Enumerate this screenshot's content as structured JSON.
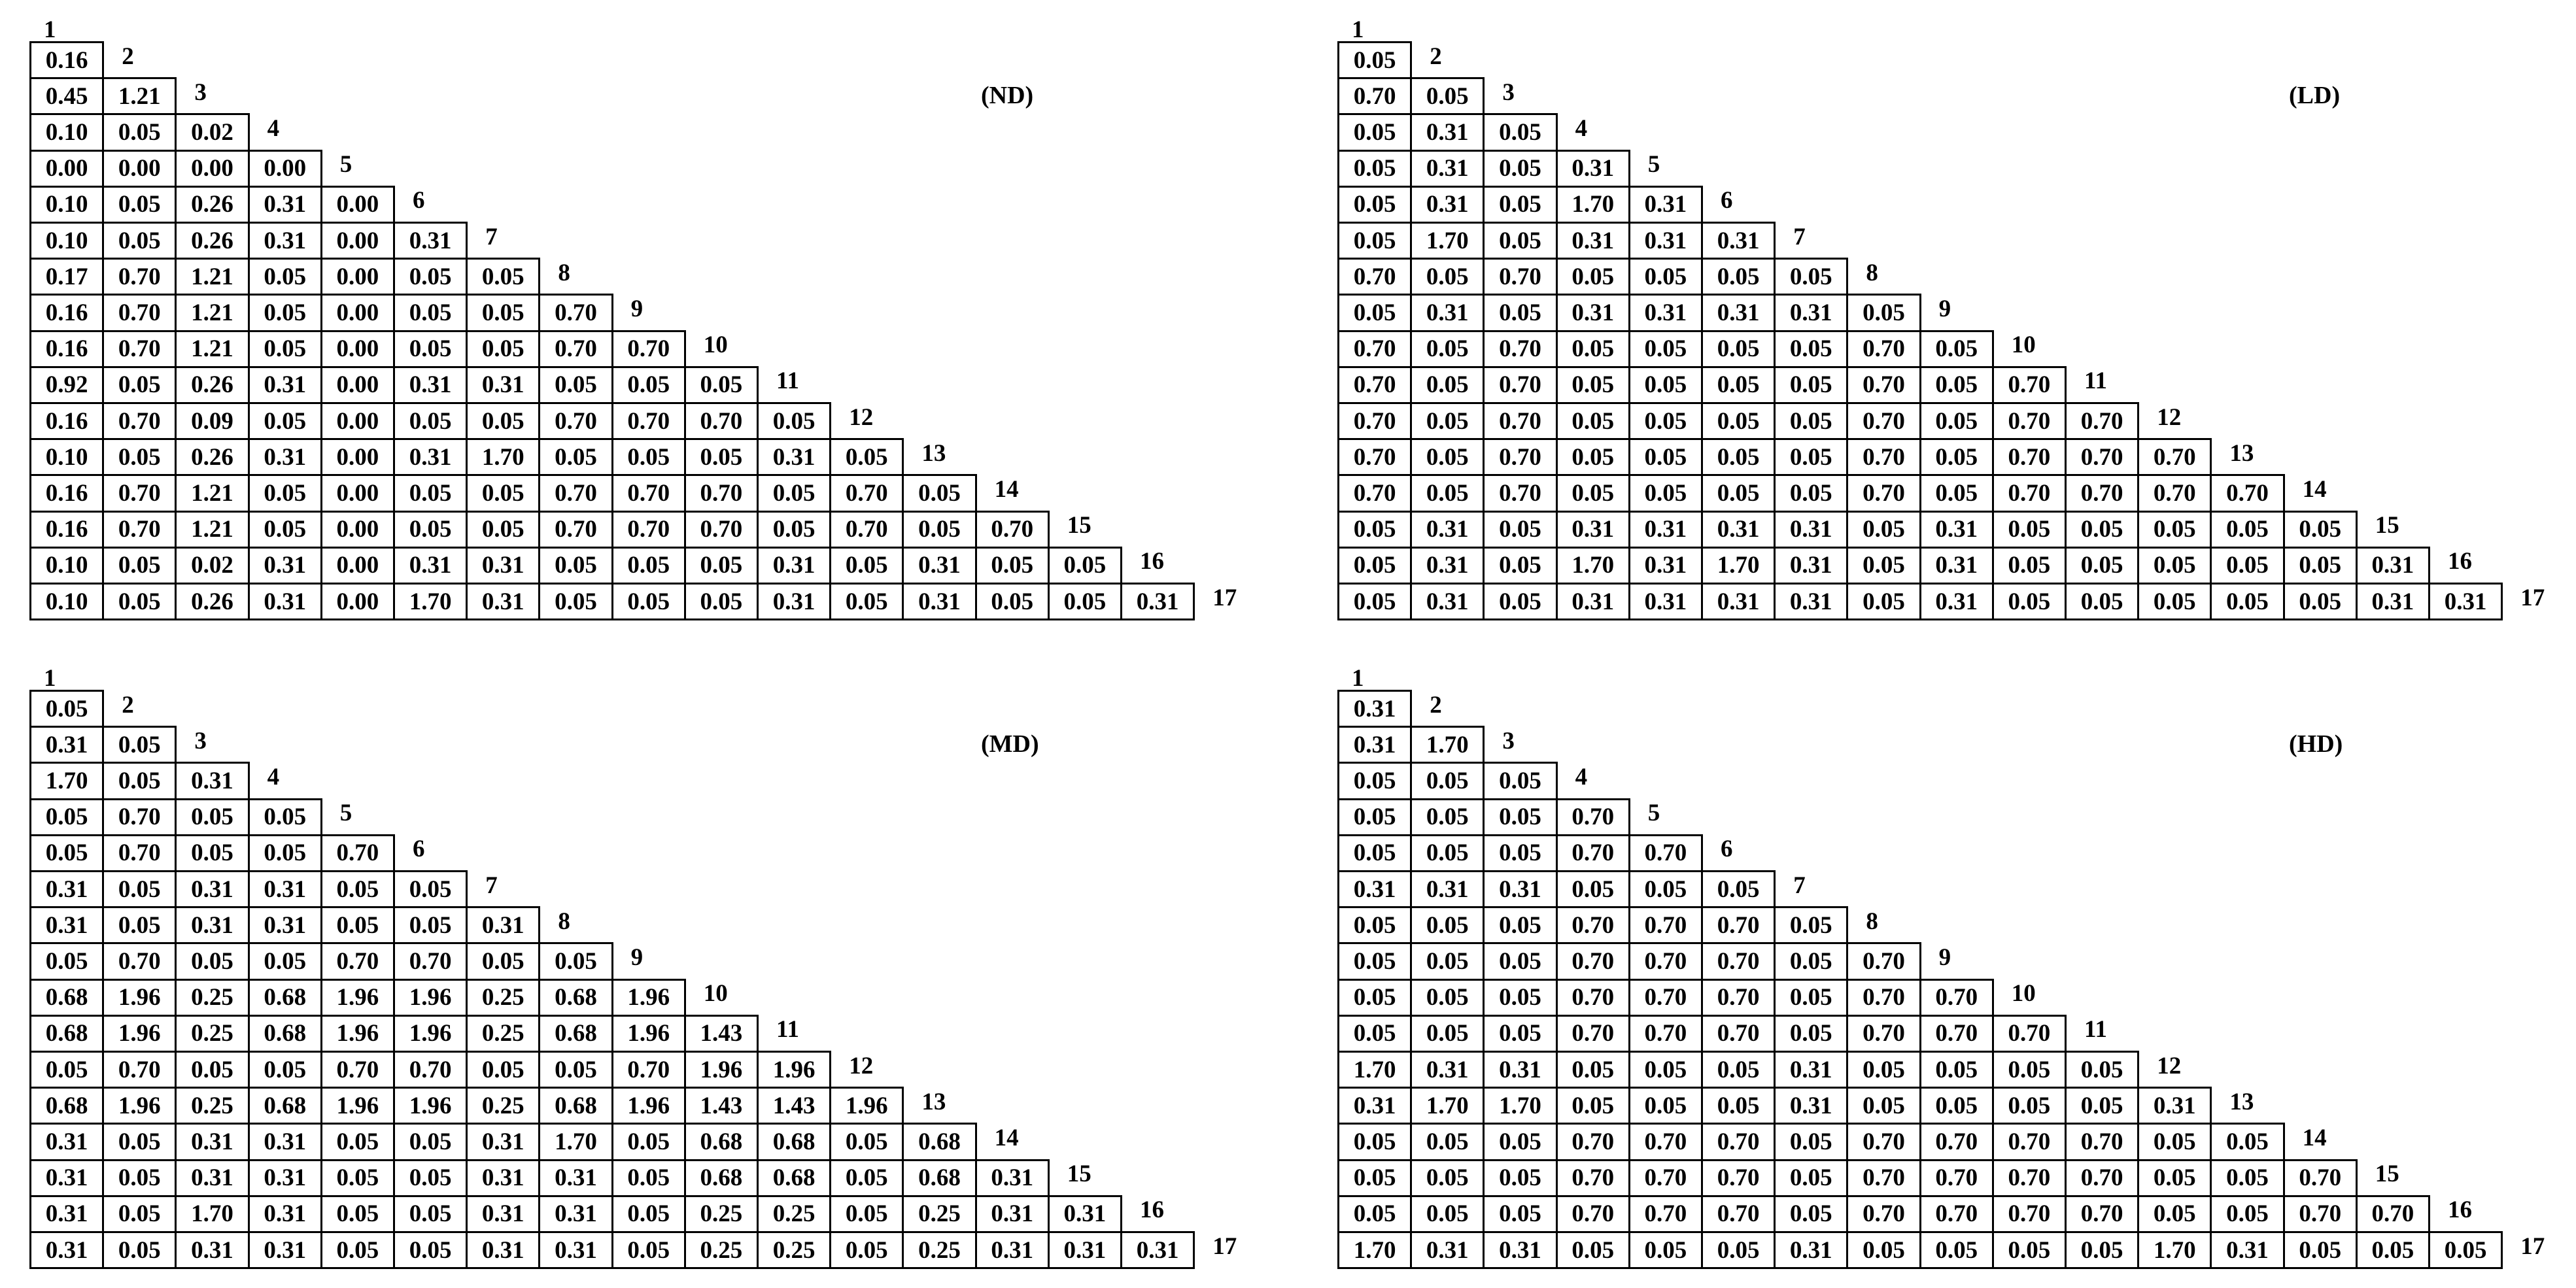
{
  "panels": [
    {
      "title": "(ND)",
      "labels": [
        "1",
        "2",
        "3",
        "4",
        "5",
        "6",
        "7",
        "8",
        "9",
        "10",
        "11",
        "12",
        "13",
        "14",
        "15",
        "16",
        "17"
      ],
      "rows": [
        [
          "0.16"
        ],
        [
          "0.45",
          "1.21"
        ],
        [
          "0.10",
          "0.05",
          "0.02"
        ],
        [
          "0.00",
          "0.00",
          "0.00",
          "0.00"
        ],
        [
          "0.10",
          "0.05",
          "0.26",
          "0.31",
          "0.00"
        ],
        [
          "0.10",
          "0.05",
          "0.26",
          "0.31",
          "0.00",
          "0.31"
        ],
        [
          "0.17",
          "0.70",
          "1.21",
          "0.05",
          "0.00",
          "0.05",
          "0.05"
        ],
        [
          "0.16",
          "0.70",
          "1.21",
          "0.05",
          "0.00",
          "0.05",
          "0.05",
          "0.70"
        ],
        [
          "0.16",
          "0.70",
          "1.21",
          "0.05",
          "0.00",
          "0.05",
          "0.05",
          "0.70",
          "0.70"
        ],
        [
          "0.92",
          "0.05",
          "0.26",
          "0.31",
          "0.00",
          "0.31",
          "0.31",
          "0.05",
          "0.05",
          "0.05"
        ],
        [
          "0.16",
          "0.70",
          "0.09",
          "0.05",
          "0.00",
          "0.05",
          "0.05",
          "0.70",
          "0.70",
          "0.70",
          "0.05"
        ],
        [
          "0.10",
          "0.05",
          "0.26",
          "0.31",
          "0.00",
          "0.31",
          "1.70",
          "0.05",
          "0.05",
          "0.05",
          "0.31",
          "0.05"
        ],
        [
          "0.16",
          "0.70",
          "1.21",
          "0.05",
          "0.00",
          "0.05",
          "0.05",
          "0.70",
          "0.70",
          "0.70",
          "0.05",
          "0.70",
          "0.05"
        ],
        [
          "0.16",
          "0.70",
          "1.21",
          "0.05",
          "0.00",
          "0.05",
          "0.05",
          "0.70",
          "0.70",
          "0.70",
          "0.05",
          "0.70",
          "0.05",
          "0.70"
        ],
        [
          "0.10",
          "0.05",
          "0.02",
          "0.31",
          "0.00",
          "0.31",
          "0.31",
          "0.05",
          "0.05",
          "0.05",
          "0.31",
          "0.05",
          "0.31",
          "0.05",
          "0.05"
        ],
        [
          "0.10",
          "0.05",
          "0.26",
          "0.31",
          "0.00",
          "1.70",
          "0.31",
          "0.05",
          "0.05",
          "0.05",
          "0.31",
          "0.05",
          "0.31",
          "0.05",
          "0.05",
          "0.31"
        ]
      ]
    },
    {
      "title": "(LD)",
      "labels": [
        "1",
        "2",
        "3",
        "4",
        "5",
        "6",
        "7",
        "8",
        "9",
        "10",
        "11",
        "12",
        "13",
        "14",
        "15",
        "16",
        "17"
      ],
      "rows": [
        [
          "0.05"
        ],
        [
          "0.70",
          "0.05"
        ],
        [
          "0.05",
          "0.31",
          "0.05"
        ],
        [
          "0.05",
          "0.31",
          "0.05",
          "0.31"
        ],
        [
          "0.05",
          "0.31",
          "0.05",
          "1.70",
          "0.31"
        ],
        [
          "0.05",
          "1.70",
          "0.05",
          "0.31",
          "0.31",
          "0.31"
        ],
        [
          "0.70",
          "0.05",
          "0.70",
          "0.05",
          "0.05",
          "0.05",
          "0.05"
        ],
        [
          "0.05",
          "0.31",
          "0.05",
          "0.31",
          "0.31",
          "0.31",
          "0.31",
          "0.05"
        ],
        [
          "0.70",
          "0.05",
          "0.70",
          "0.05",
          "0.05",
          "0.05",
          "0.05",
          "0.70",
          "0.05"
        ],
        [
          "0.70",
          "0.05",
          "0.70",
          "0.05",
          "0.05",
          "0.05",
          "0.05",
          "0.70",
          "0.05",
          "0.70"
        ],
        [
          "0.70",
          "0.05",
          "0.70",
          "0.05",
          "0.05",
          "0.05",
          "0.05",
          "0.70",
          "0.05",
          "0.70",
          "0.70"
        ],
        [
          "0.70",
          "0.05",
          "0.70",
          "0.05",
          "0.05",
          "0.05",
          "0.05",
          "0.70",
          "0.05",
          "0.70",
          "0.70",
          "0.70"
        ],
        [
          "0.70",
          "0.05",
          "0.70",
          "0.05",
          "0.05",
          "0.05",
          "0.05",
          "0.70",
          "0.05",
          "0.70",
          "0.70",
          "0.70",
          "0.70"
        ],
        [
          "0.05",
          "0.31",
          "0.05",
          "0.31",
          "0.31",
          "0.31",
          "0.31",
          "0.05",
          "0.31",
          "0.05",
          "0.05",
          "0.05",
          "0.05",
          "0.05"
        ],
        [
          "0.05",
          "0.31",
          "0.05",
          "1.70",
          "0.31",
          "1.70",
          "0.31",
          "0.05",
          "0.31",
          "0.05",
          "0.05",
          "0.05",
          "0.05",
          "0.05",
          "0.31"
        ],
        [
          "0.05",
          "0.31",
          "0.05",
          "0.31",
          "0.31",
          "0.31",
          "0.31",
          "0.05",
          "0.31",
          "0.05",
          "0.05",
          "0.05",
          "0.05",
          "0.05",
          "0.31",
          "0.31"
        ]
      ]
    },
    {
      "title": "(MD)",
      "labels": [
        "1",
        "2",
        "3",
        "4",
        "5",
        "6",
        "7",
        "8",
        "9",
        "10",
        "11",
        "12",
        "13",
        "14",
        "15",
        "16",
        "17"
      ],
      "rows": [
        [
          "0.05"
        ],
        [
          "0.31",
          "0.05"
        ],
        [
          "1.70",
          "0.05",
          "0.31"
        ],
        [
          "0.05",
          "0.70",
          "0.05",
          "0.05"
        ],
        [
          "0.05",
          "0.70",
          "0.05",
          "0.05",
          "0.70"
        ],
        [
          "0.31",
          "0.05",
          "0.31",
          "0.31",
          "0.05",
          "0.05"
        ],
        [
          "0.31",
          "0.05",
          "0.31",
          "0.31",
          "0.05",
          "0.05",
          "0.31"
        ],
        [
          "0.05",
          "0.70",
          "0.05",
          "0.05",
          "0.70",
          "0.70",
          "0.05",
          "0.05"
        ],
        [
          "0.68",
          "1.96",
          "0.25",
          "0.68",
          "1.96",
          "1.96",
          "0.25",
          "0.68",
          "1.96"
        ],
        [
          "0.68",
          "1.96",
          "0.25",
          "0.68",
          "1.96",
          "1.96",
          "0.25",
          "0.68",
          "1.96",
          "1.43"
        ],
        [
          "0.05",
          "0.70",
          "0.05",
          "0.05",
          "0.70",
          "0.70",
          "0.05",
          "0.05",
          "0.70",
          "1.96",
          "1.96"
        ],
        [
          "0.68",
          "1.96",
          "0.25",
          "0.68",
          "1.96",
          "1.96",
          "0.25",
          "0.68",
          "1.96",
          "1.43",
          "1.43",
          "1.96"
        ],
        [
          "0.31",
          "0.05",
          "0.31",
          "0.31",
          "0.05",
          "0.05",
          "0.31",
          "1.70",
          "0.05",
          "0.68",
          "0.68",
          "0.05",
          "0.68"
        ],
        [
          "0.31",
          "0.05",
          "0.31",
          "0.31",
          "0.05",
          "0.05",
          "0.31",
          "0.31",
          "0.05",
          "0.68",
          "0.68",
          "0.05",
          "0.68",
          "0.31"
        ],
        [
          "0.31",
          "0.05",
          "1.70",
          "0.31",
          "0.05",
          "0.05",
          "0.31",
          "0.31",
          "0.05",
          "0.25",
          "0.25",
          "0.05",
          "0.25",
          "0.31",
          "0.31"
        ],
        [
          "0.31",
          "0.05",
          "0.31",
          "0.31",
          "0.05",
          "0.05",
          "0.31",
          "0.31",
          "0.05",
          "0.25",
          "0.25",
          "0.05",
          "0.25",
          "0.31",
          "0.31",
          "0.31"
        ]
      ]
    },
    {
      "title": "(HD)",
      "labels": [
        "1",
        "2",
        "3",
        "4",
        "5",
        "6",
        "7",
        "8",
        "9",
        "10",
        "11",
        "12",
        "13",
        "14",
        "15",
        "16",
        "17"
      ],
      "rows": [
        [
          "0.31"
        ],
        [
          "0.31",
          "1.70"
        ],
        [
          "0.05",
          "0.05",
          "0.05"
        ],
        [
          "0.05",
          "0.05",
          "0.05",
          "0.70"
        ],
        [
          "0.05",
          "0.05",
          "0.05",
          "0.70",
          "0.70"
        ],
        [
          "0.31",
          "0.31",
          "0.31",
          "0.05",
          "0.05",
          "0.05"
        ],
        [
          "0.05",
          "0.05",
          "0.05",
          "0.70",
          "0.70",
          "0.70",
          "0.05"
        ],
        [
          "0.05",
          "0.05",
          "0.05",
          "0.70",
          "0.70",
          "0.70",
          "0.05",
          "0.70"
        ],
        [
          "0.05",
          "0.05",
          "0.05",
          "0.70",
          "0.70",
          "0.70",
          "0.05",
          "0.70",
          "0.70"
        ],
        [
          "0.05",
          "0.05",
          "0.05",
          "0.70",
          "0.70",
          "0.70",
          "0.05",
          "0.70",
          "0.70",
          "0.70"
        ],
        [
          "1.70",
          "0.31",
          "0.31",
          "0.05",
          "0.05",
          "0.05",
          "0.31",
          "0.05",
          "0.05",
          "0.05",
          "0.05"
        ],
        [
          "0.31",
          "1.70",
          "1.70",
          "0.05",
          "0.05",
          "0.05",
          "0.31",
          "0.05",
          "0.05",
          "0.05",
          "0.05",
          "0.31"
        ],
        [
          "0.05",
          "0.05",
          "0.05",
          "0.70",
          "0.70",
          "0.70",
          "0.05",
          "0.70",
          "0.70",
          "0.70",
          "0.70",
          "0.05",
          "0.05"
        ],
        [
          "0.05",
          "0.05",
          "0.05",
          "0.70",
          "0.70",
          "0.70",
          "0.05",
          "0.70",
          "0.70",
          "0.70",
          "0.70",
          "0.05",
          "0.05",
          "0.70"
        ],
        [
          "0.05",
          "0.05",
          "0.05",
          "0.70",
          "0.70",
          "0.70",
          "0.05",
          "0.70",
          "0.70",
          "0.70",
          "0.70",
          "0.05",
          "0.05",
          "0.70",
          "0.70"
        ],
        [
          "1.70",
          "0.31",
          "0.31",
          "0.05",
          "0.05",
          "0.05",
          "0.31",
          "0.05",
          "0.05",
          "0.05",
          "0.05",
          "1.70",
          "0.31",
          "0.05",
          "0.05",
          "0.05"
        ]
      ]
    }
  ]
}
